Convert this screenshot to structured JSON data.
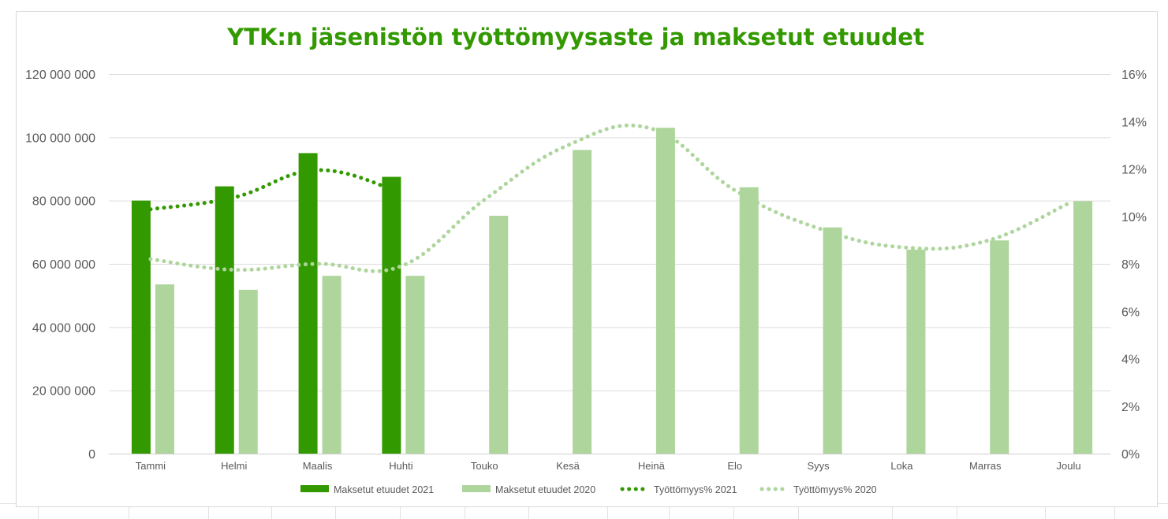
{
  "chart_data": {
    "type": "bar",
    "title": "YTK:n jäsenistön työttömyysaste ja maksetut etuudet",
    "categories": [
      "Tammi",
      "Helmi",
      "Maalis",
      "Huhti",
      "Touko",
      "Kesä",
      "Heinä",
      "Elo",
      "Syys",
      "Loka",
      "Marras",
      "Joulu"
    ],
    "y_left": {
      "ylim": [
        0,
        120000000
      ],
      "ticks": [
        "0",
        "20 000 000",
        "40 000 000",
        "60 000 000",
        "80 000 000",
        "100 000 000",
        "120 000 000"
      ]
    },
    "y_right": {
      "ylim": [
        0,
        16
      ],
      "ticks": [
        "0%",
        "2%",
        "4%",
        "6%",
        "8%",
        "10%",
        "12%",
        "14%",
        "16%"
      ]
    },
    "grid": true,
    "legend_position": "bottom",
    "series": [
      {
        "name": "Maksetut etuudet 2021",
        "kind": "bar",
        "axis": "left",
        "color": "#339900",
        "values": [
          80000000,
          84500000,
          95000000,
          87500000,
          null,
          null,
          null,
          null,
          null,
          null,
          null,
          null
        ]
      },
      {
        "name": "Maksetut etuudet 2020",
        "kind": "bar",
        "axis": "left",
        "color": "#add59c",
        "values": [
          53500000,
          51800000,
          56200000,
          56200000,
          75200000,
          96000000,
          103000000,
          84200000,
          71500000,
          64500000,
          67400000,
          79800000
        ]
      },
      {
        "name": "Työttömyys% 2021",
        "kind": "line",
        "style": "dotted",
        "axis": "right",
        "color": "#339900",
        "values": [
          10.3,
          10.8,
          11.95,
          11.0,
          null,
          null,
          null,
          null,
          null,
          null,
          null,
          null
        ]
      },
      {
        "name": "Työttömyys% 2020",
        "kind": "line",
        "style": "dotted",
        "axis": "right",
        "color": "#add59c",
        "values": [
          8.2,
          7.75,
          8.0,
          7.9,
          10.7,
          13.0,
          13.7,
          11.1,
          9.5,
          8.7,
          8.95,
          10.55
        ]
      }
    ]
  }
}
